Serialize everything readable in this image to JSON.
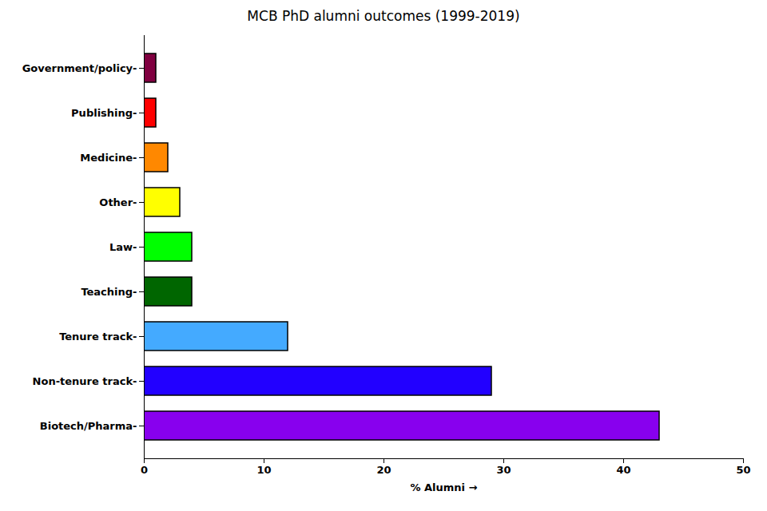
{
  "chart_data": {
    "type": "bar",
    "orientation": "horizontal",
    "title": "MCB PhD alumni outcomes (1999-2019)",
    "xlabel": "% Alumni",
    "categories": [
      "Biotech/Pharma-",
      "Non-tenure track-",
      "Tenure track-",
      "Teaching-",
      "Law-",
      "Other-",
      "Medicine-",
      "Publishing-",
      "Government/policy-"
    ],
    "values": [
      43,
      29,
      12,
      4,
      4,
      3,
      2,
      1,
      1
    ],
    "colors": [
      "#8800EE",
      "#2200FF",
      "#44AAFF",
      "#006600",
      "#00FF00",
      "#FFFF00",
      "#FF8800",
      "#FF0000",
      "#800040"
    ],
    "xlim": [
      0,
      50
    ],
    "xticks": [
      0,
      10,
      20,
      30,
      40,
      50
    ],
    "grid": false
  }
}
